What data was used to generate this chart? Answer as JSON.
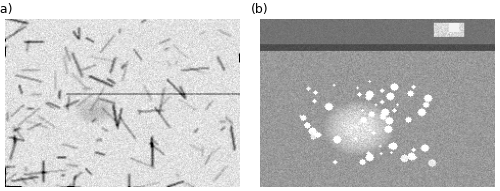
{
  "fig_width": 5.0,
  "fig_height": 1.91,
  "dpi": 100,
  "label_a": "(a)",
  "label_b": "(b)",
  "label_fontsize": 9,
  "bg_color": "#ffffff",
  "panel_a_base_gray": 0.88,
  "panel_b_base_gray": 0.6,
  "seed": 42
}
